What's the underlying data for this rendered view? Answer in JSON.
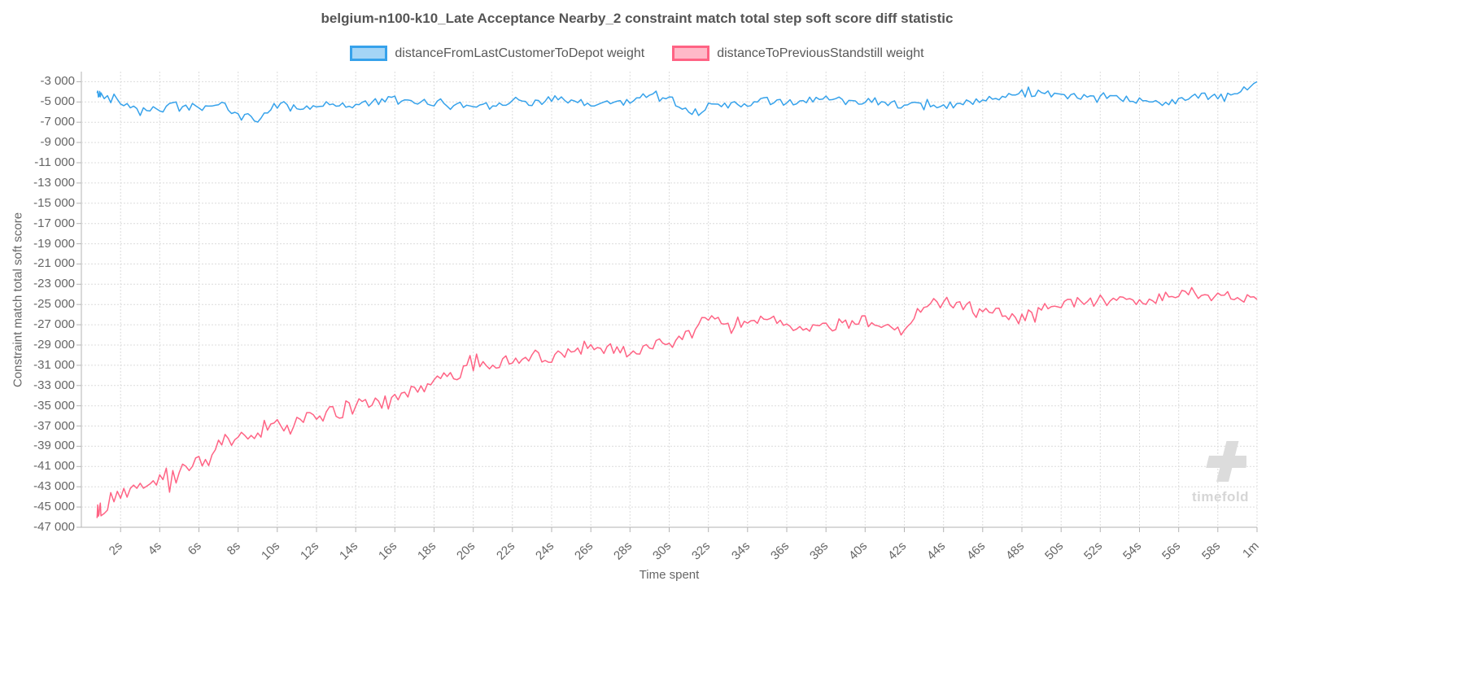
{
  "watermark": {
    "text": "timefold"
  },
  "chart_data": {
    "type": "line",
    "title": "belgium-n100-k10_Late Acceptance Nearby_2 constraint match total step soft score diff statistic",
    "xlabel": "Time spent",
    "ylabel": "Constraint match total soft score",
    "xlim": [
      0,
      60
    ],
    "ylim": [
      -47000,
      -2000
    ],
    "grid": true,
    "legend_position": "top",
    "x_tick_values": [
      2,
      4,
      6,
      8,
      10,
      12,
      14,
      16,
      18,
      20,
      22,
      24,
      26,
      28,
      30,
      32,
      34,
      36,
      38,
      40,
      42,
      44,
      46,
      48,
      50,
      52,
      54,
      56,
      58,
      60
    ],
    "x_tick_labels": [
      "2s",
      "4s",
      "6s",
      "8s",
      "10s",
      "12s",
      "14s",
      "16s",
      "18s",
      "20s",
      "22s",
      "24s",
      "26s",
      "28s",
      "30s",
      "32s",
      "34s",
      "36s",
      "38s",
      "40s",
      "42s",
      "44s",
      "46s",
      "48s",
      "50s",
      "52s",
      "54s",
      "56s",
      "58s",
      "1m"
    ],
    "y_tick_values": [
      -3000,
      -5000,
      -7000,
      -9000,
      -11000,
      -13000,
      -15000,
      -17000,
      -19000,
      -21000,
      -23000,
      -25000,
      -27000,
      -29000,
      -31000,
      -33000,
      -35000,
      -37000,
      -39000,
      -41000,
      -43000,
      -45000,
      -47000
    ],
    "y_tick_labels": [
      "-3 000",
      "-5 000",
      "-7 000",
      "-9 000",
      "-11 000",
      "-13 000",
      "-15 000",
      "-17 000",
      "-19 000",
      "-21 000",
      "-23 000",
      "-25 000",
      "-27 000",
      "-29 000",
      "-31 000",
      "-33 000",
      "-35 000",
      "-37 000",
      "-39 000",
      "-41 000",
      "-43 000",
      "-45 000",
      "-47 000"
    ],
    "x": [
      0.8,
      1,
      2,
      3,
      4,
      5,
      6,
      7,
      8,
      9,
      10,
      11,
      12,
      13,
      14,
      15,
      16,
      17,
      18,
      19,
      20,
      21,
      22,
      23,
      24,
      25,
      26,
      27,
      28,
      29,
      30,
      31,
      32,
      33,
      34,
      35,
      36,
      37,
      38,
      39,
      40,
      41,
      42,
      43,
      44,
      45,
      46,
      47,
      48,
      49,
      50,
      51,
      52,
      53,
      54,
      55,
      56,
      57,
      58,
      59,
      60
    ],
    "series": [
      {
        "name": "distanceFromLastCustomerToDepot weight",
        "color": "#36a2eb",
        "fill": "rgba(54,162,235,0.45)",
        "noise": {
          "start": 420,
          "end": 380
        },
        "y": [
          -4200,
          -4300,
          -5000,
          -5600,
          -5700,
          -5300,
          -5600,
          -5100,
          -6400,
          -6700,
          -5200,
          -5500,
          -5400,
          -5200,
          -5300,
          -5000,
          -4800,
          -5200,
          -5000,
          -5200,
          -5400,
          -5100,
          -4900,
          -5000,
          -4700,
          -5000,
          -5300,
          -5000,
          -5100,
          -4000,
          -4600,
          -6000,
          -5500,
          -5300,
          -5200,
          -4900,
          -5100,
          -4800,
          -4700,
          -4900,
          -4800,
          -5000,
          -5300,
          -5500,
          -5400,
          -5200,
          -4900,
          -4700,
          -4200,
          -4000,
          -4300,
          -4600,
          -4800,
          -4700,
          -4900,
          -5000,
          -4800,
          -4400,
          -4600,
          -4200,
          -3000
        ]
      },
      {
        "name": "distanceToPreviousStandstill weight",
        "color": "#ff6384",
        "fill": "rgba(255,99,132,0.45)",
        "noise": {
          "start": 900,
          "end": 450
        },
        "y": [
          -45300,
          -45000,
          -43800,
          -43500,
          -42000,
          -41800,
          -40500,
          -38800,
          -37800,
          -37500,
          -36800,
          -36500,
          -36300,
          -35600,
          -35000,
          -34700,
          -34500,
          -33500,
          -32800,
          -32000,
          -31300,
          -31000,
          -30500,
          -30200,
          -30000,
          -29500,
          -29200,
          -29400,
          -29600,
          -29000,
          -28800,
          -28000,
          -26400,
          -26800,
          -26900,
          -26500,
          -27200,
          -27000,
          -27200,
          -26800,
          -26700,
          -27000,
          -27600,
          -25000,
          -24700,
          -25200,
          -25400,
          -25800,
          -26300,
          -25500,
          -24900,
          -24700,
          -24500,
          -24700,
          -24900,
          -24400,
          -23800,
          -24300,
          -24200,
          -24300,
          -24500
        ]
      }
    ]
  }
}
